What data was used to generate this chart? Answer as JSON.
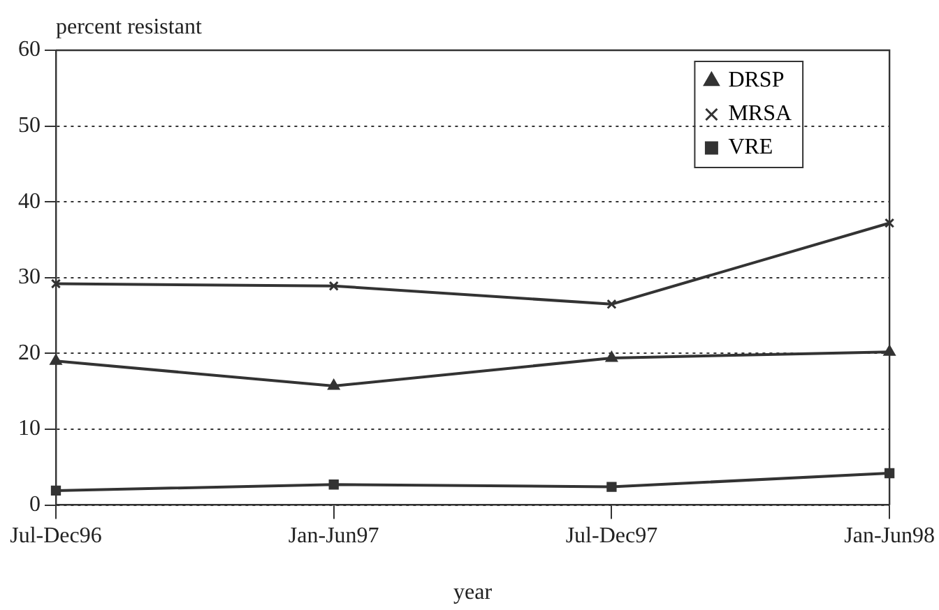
{
  "chart_data": {
    "type": "line",
    "ylabel": "percent resistant",
    "xlabel": "year",
    "categories": [
      "Jul-Dec96",
      "Jan-Jun97",
      "Jul-Dec97",
      "Jan-Jun98"
    ],
    "series": [
      {
        "name": "DRSP",
        "color": "#333333",
        "marker": "triangle",
        "values": [
          19,
          15.7,
          19.4,
          20.2
        ]
      },
      {
        "name": "MRSA",
        "color": "#333333",
        "marker": "cross",
        "values": [
          29.2,
          28.9,
          26.5,
          37.2
        ]
      },
      {
        "name": "VRE",
        "color": "#333333",
        "marker": "square",
        "values": [
          1.9,
          2.7,
          2.4,
          4.2
        ]
      }
    ],
    "ylim": [
      0,
      60
    ],
    "yticks": [
      0,
      10,
      20,
      30,
      40,
      50,
      60
    ],
    "grid": "y",
    "legend": "top right",
    "line_style": "solid"
  }
}
